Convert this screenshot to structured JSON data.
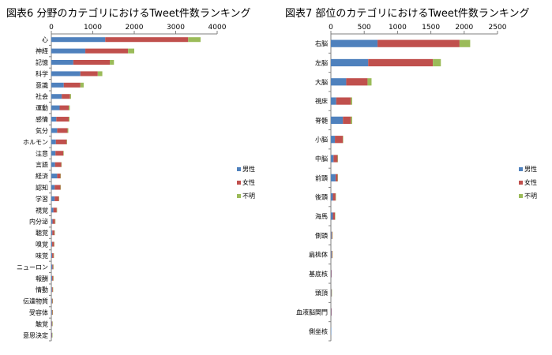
{
  "chart_data": [
    {
      "type": "bar",
      "orientation": "horizontal",
      "stacked": true,
      "title": "図表6 分野のカテゴリにおけるTweet件数ランキング",
      "xlim": [
        0,
        4000
      ],
      "xticks": [
        0,
        1000,
        2000,
        3000,
        4000
      ],
      "grid": false,
      "legend_position": "right",
      "categories": [
        "心",
        "神経",
        "記憶",
        "科学",
        "意識",
        "社会",
        "運動",
        "感情",
        "気分",
        "ホルモン",
        "注意",
        "言語",
        "経済",
        "認知",
        "学習",
        "視覚",
        "内分泌",
        "聴覚",
        "嗅覚",
        "味覚",
        "ニューロン",
        "報酬",
        "情動",
        "伝達物質",
        "受容体",
        "触覚",
        "意思決定"
      ],
      "series": [
        {
          "name": "男性",
          "color": "#4f81bd",
          "values": [
            1300,
            820,
            530,
            700,
            300,
            250,
            200,
            120,
            140,
            110,
            100,
            90,
            140,
            80,
            80,
            50,
            30,
            25,
            20,
            20,
            25,
            20,
            15,
            15,
            15,
            10,
            10
          ]
        },
        {
          "name": "女性",
          "color": "#c0504d",
          "values": [
            2000,
            1030,
            880,
            420,
            400,
            200,
            220,
            300,
            250,
            260,
            190,
            150,
            80,
            140,
            100,
            80,
            60,
            50,
            45,
            35,
            20,
            25,
            20,
            15,
            15,
            15,
            10
          ]
        },
        {
          "name": "不明",
          "color": "#9bbb59",
          "values": [
            300,
            150,
            100,
            110,
            80,
            25,
            25,
            20,
            20,
            5,
            10,
            10,
            5,
            5,
            5,
            5,
            5,
            5,
            5,
            5,
            5,
            5,
            5,
            5,
            5,
            5,
            5
          ]
        }
      ]
    },
    {
      "type": "bar",
      "orientation": "horizontal",
      "stacked": true,
      "title": "図表7 部位のカテゴリにおけるTweet件数ランキング",
      "xlim": [
        0,
        2500
      ],
      "xticks": [
        0,
        500,
        1000,
        1500,
        2000,
        2500
      ],
      "grid": false,
      "legend_position": "right",
      "categories": [
        "右脳",
        "左脳",
        "大脳",
        "視床",
        "脊髄",
        "小脳",
        "中脳",
        "前頭",
        "後頭",
        "海馬",
        "側頭",
        "扁桃体",
        "基底核",
        "頭頂",
        "血液脳関門",
        "側坐核"
      ],
      "series": [
        {
          "name": "男性",
          "color": "#4f81bd",
          "values": [
            700,
            560,
            230,
            80,
            180,
            60,
            40,
            70,
            30,
            30,
            10,
            10,
            5,
            5,
            5,
            5
          ]
        },
        {
          "name": "女性",
          "color": "#c0504d",
          "values": [
            1230,
            970,
            320,
            220,
            120,
            120,
            60,
            30,
            40,
            30,
            10,
            10,
            5,
            5,
            5,
            0
          ]
        },
        {
          "name": "不明",
          "color": "#9bbb59",
          "values": [
            160,
            120,
            60,
            20,
            20,
            5,
            5,
            5,
            5,
            5,
            5,
            5,
            0,
            5,
            0,
            0
          ]
        }
      ]
    }
  ]
}
